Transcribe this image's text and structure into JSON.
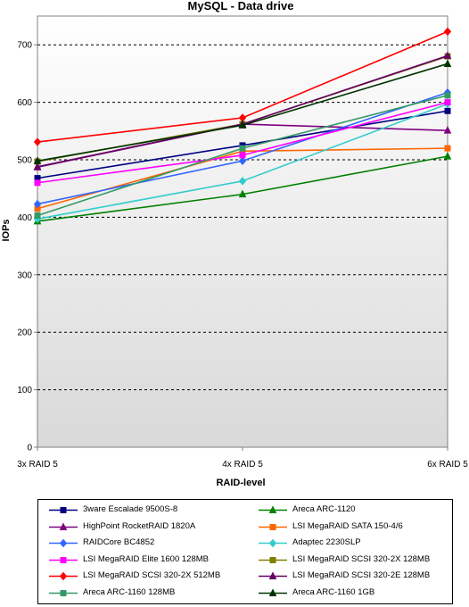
{
  "chart_data": {
    "type": "line",
    "title": "MySQL - Data drive",
    "xlabel": "RAID-level",
    "ylabel": "IOPs",
    "categories": [
      "3x RAID 5",
      "4x RAID 5",
      "6x RAID 5"
    ],
    "ylim": [
      0,
      750
    ],
    "yticks": [
      0,
      100,
      200,
      300,
      400,
      500,
      600,
      700
    ],
    "grid": true,
    "legend_position": "bottom",
    "series": [
      {
        "name": "3ware Escalade 9500S-8",
        "values": [
          468,
          525,
          585
        ],
        "color": "#000080",
        "marker": "square"
      },
      {
        "name": "Areca ARC-1120",
        "values": [
          393,
          440,
          506
        ],
        "color": "#008000",
        "marker": "triangle"
      },
      {
        "name": "HighPoint RocketRAID 1820A",
        "values": [
          487,
          562,
          551
        ],
        "color": "#800080",
        "marker": "triangle"
      },
      {
        "name": "LSI MegaRAID SATA 150-4/6",
        "values": [
          415,
          515,
          520
        ],
        "color": "#ff6600",
        "marker": "square"
      },
      {
        "name": "RAIDCore BC4852",
        "values": [
          423,
          498,
          617
        ],
        "color": "#3366ff",
        "marker": "diamond"
      },
      {
        "name": "Adaptec 2230SLP",
        "values": [
          397,
          463,
          597
        ],
        "color": "#33cccc",
        "marker": "diamond"
      },
      {
        "name": "LSI MegaRAID Elite 1600 128MB",
        "values": [
          460,
          508,
          600
        ],
        "color": "#ff00ff",
        "marker": "square"
      },
      {
        "name": "LSI MegaRAID SCSI 320-2X 128MB",
        "values": [
          497,
          562,
          680
        ],
        "color": "#808000",
        "marker": "square"
      },
      {
        "name": "LSI MegaRAID SCSI 320-2X 512MB",
        "values": [
          531,
          573,
          723
        ],
        "color": "#ff0000",
        "marker": "diamond"
      },
      {
        "name": "LSI MegaRAID SCSI 320-2E 128MB",
        "values": [
          488,
          562,
          681
        ],
        "color": "#660066",
        "marker": "triangle"
      },
      {
        "name": "Areca ARC-1160 128MB",
        "values": [
          403,
          520,
          612
        ],
        "color": "#339966",
        "marker": "square"
      },
      {
        "name": "Areca ARC-1160 1GB",
        "values": [
          498,
          560,
          667
        ],
        "color": "#003300",
        "marker": "triangle"
      }
    ]
  }
}
